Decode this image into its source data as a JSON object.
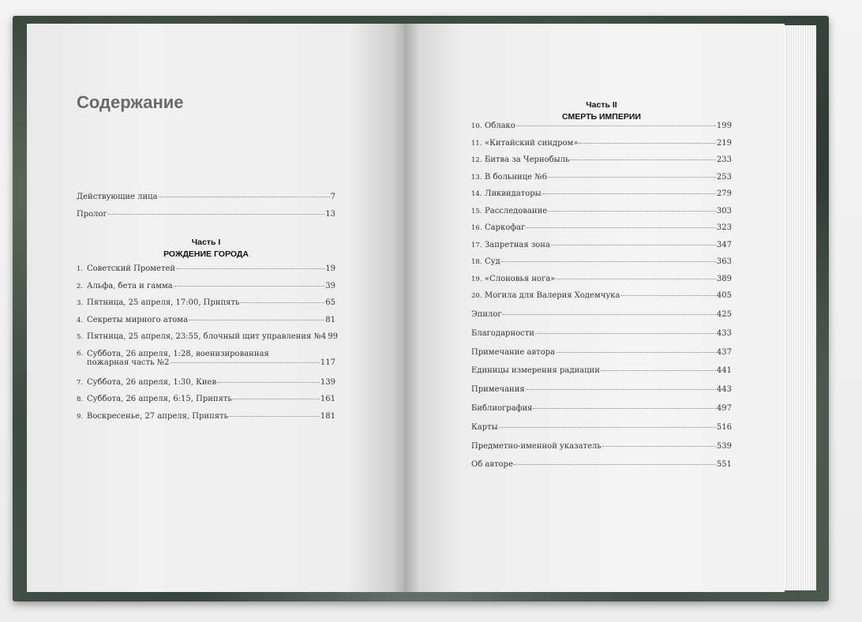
{
  "title": "Содержание",
  "front": [
    {
      "label": "Действующие лица",
      "page": "7"
    },
    {
      "label": "Пролог",
      "page": "13"
    }
  ],
  "part1": {
    "heading": "Часть I",
    "subtitle": "РОЖДЕНИЕ ГОРОДА",
    "chapters": [
      {
        "num": "1.",
        "label": "Советский Прометей",
        "page": "19"
      },
      {
        "num": "2.",
        "label": "Альфа, бета и гамма",
        "page": "39"
      },
      {
        "num": "3.",
        "label": "Пятница, 25 апреля, 17:00, Припять",
        "page": "65"
      },
      {
        "num": "4.",
        "label": "Секреты мирного атома",
        "page": "81"
      },
      {
        "num": "5.",
        "label": "Пятница, 25 апреля, 23:55, блочный щит управления №4",
        "page": "99"
      },
      {
        "num": "6.",
        "label": "Суббота, 26 апреля, 1:28, военизированная",
        "label2": "пожарная часть №2",
        "page": "117"
      },
      {
        "num": "7.",
        "label": "Суббота, 26 апреля, 1:30, Киев",
        "page": "139"
      },
      {
        "num": "8.",
        "label": "Суббота, 26 апреля, 6:15, Припять",
        "page": "161"
      },
      {
        "num": "9.",
        "label": "Воскресенье, 27 апреля, Припять",
        "page": "181"
      }
    ]
  },
  "part2": {
    "heading": "Часть II",
    "subtitle": "СМЕРТЬ ИМПЕРИИ",
    "chapters": [
      {
        "num": "10.",
        "label": "Облако",
        "page": "199"
      },
      {
        "num": "11.",
        "label": "«Китайский синдром»",
        "page": "219"
      },
      {
        "num": "12.",
        "label": "Битва за Чернобыль",
        "page": "233"
      },
      {
        "num": "13.",
        "label": "В больнице №6",
        "page": "253"
      },
      {
        "num": "14.",
        "label": "Ликвидаторы",
        "page": "279"
      },
      {
        "num": "15.",
        "label": "Расследование",
        "page": "303"
      },
      {
        "num": "16.",
        "label": "Саркофаг",
        "page": "323"
      },
      {
        "num": "17.",
        "label": "Запретная зона",
        "page": "347"
      },
      {
        "num": "18.",
        "label": "Суд",
        "page": "363"
      },
      {
        "num": "19.",
        "label": "«Слоновья нога»",
        "page": "389"
      },
      {
        "num": "20.",
        "label": "Могила для Валерия Ходемчука",
        "page": "405"
      }
    ]
  },
  "back": [
    {
      "label": "Эпилог",
      "page": "425"
    },
    {
      "label": "Благодарности",
      "page": "433"
    },
    {
      "label": "Примечание автора",
      "page": "437"
    },
    {
      "label": "Единицы измерения радиации",
      "page": "441"
    },
    {
      "label": "Примечания",
      "page": "443"
    },
    {
      "label": "Библиография",
      "page": "497"
    },
    {
      "label": "Карты",
      "page": "516"
    },
    {
      "label": "Предметно-именной указатель",
      "page": "539"
    },
    {
      "label": "Об авторе",
      "page": "551"
    }
  ]
}
